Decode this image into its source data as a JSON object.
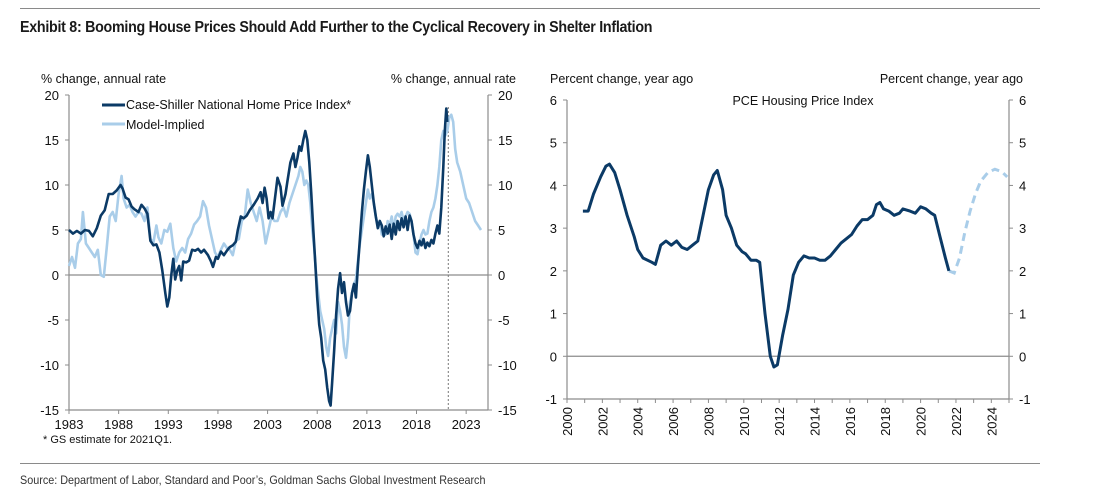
{
  "title": "Exhibit 8: Booming House Prices Should Add Further to the Cyclical Recovery in Shelter Inflation",
  "source": "Source: Department of Labor, Standard and Poor’s, Goldman Sachs Global Investment Research",
  "colors": {
    "dark_blue": "#0b3a66",
    "light_blue": "#a9cde9",
    "axis": "#8c8c8c"
  },
  "chart_data": [
    {
      "type": "line",
      "title": "",
      "ylabel_left": "% change, annual rate",
      "ylabel_right": "% change, annual rate",
      "xlabel": "",
      "footnote": "* GS estimate for 2021Q1.",
      "xlim": [
        1983,
        2025.2
      ],
      "ylim": [
        -15,
        20
      ],
      "x_ticks": [
        1983,
        1988,
        1993,
        1998,
        2003,
        2008,
        2013,
        2018,
        2023
      ],
      "y_ticks": [
        -15,
        -10,
        -5,
        0,
        5,
        10,
        15,
        20
      ],
      "vline_x": 2021.2,
      "legend_position": "top-left",
      "series": [
        {
          "name": "Case-Shiller National Home Price Index*",
          "style": "solid-dark",
          "points": [
            [
              1983.0,
              5.0
            ],
            [
              1983.3,
              4.6
            ],
            [
              1983.6,
              4.9
            ],
            [
              1984.0,
              4.6
            ],
            [
              1984.3,
              5.0
            ],
            [
              1984.6,
              4.8
            ],
            [
              1985.0,
              5.0
            ],
            [
              1985.5,
              4.3
            ],
            [
              1986.0,
              5.3
            ],
            [
              1986.5,
              6.7
            ],
            [
              1987.0,
              7.3
            ],
            [
              1987.3,
              9.0
            ],
            [
              1987.7,
              9.0
            ],
            [
              1988.0,
              9.3
            ],
            [
              1988.4,
              10.0
            ],
            [
              1988.7,
              9.8
            ],
            [
              1989.0,
              8.8
            ],
            [
              1989.3,
              8.0
            ],
            [
              1989.6,
              8.4
            ],
            [
              1990.0,
              7.4
            ],
            [
              1990.3,
              7.0
            ],
            [
              1990.6,
              6.8
            ],
            [
              1991.0,
              7.8
            ],
            [
              1991.3,
              7.4
            ],
            [
              1991.6,
              6.8
            ],
            [
              1992.0,
              4.0
            ],
            [
              1992.3,
              3.2
            ],
            [
              1992.6,
              3.5
            ],
            [
              1993.0,
              3.0
            ],
            [
              1993.3,
              1.4
            ],
            [
              1993.6,
              0.0
            ],
            [
              1994.0,
              -3.5
            ],
            [
              1994.3,
              -3.0
            ],
            [
              1994.6,
              -0.5
            ],
            [
              1995.0,
              1.8
            ],
            [
              1995.3,
              -0.5
            ],
            [
              1995.6,
              0.5
            ],
            [
              1996.0,
              1.0
            ],
            [
              1996.3,
              -0.5
            ],
            [
              1996.6,
              1.5
            ],
            [
              1997.0,
              1.2
            ],
            [
              1997.5,
              1.5
            ],
            [
              1998.0,
              2.8
            ],
            [
              1998.5,
              2.5
            ],
            [
              1999.0,
              2.9
            ],
            [
              1999.5,
              2.5
            ],
            [
              2000.0,
              2.0
            ],
            [
              2000.5,
              1.5
            ],
            [
              2001.0,
              0.9
            ],
            [
              2001.5,
              2.2
            ],
            [
              2002.0,
              1.8
            ],
            [
              2002.5,
              2.7
            ],
            [
              2003.0,
              2.2
            ],
            [
              2003.5,
              2.6
            ],
            [
              2004.0,
              3.0
            ],
            [
              2004.5,
              3.2
            ],
            [
              2005.0,
              3.5
            ],
            [
              2005.3,
              5.0
            ],
            [
              2005.6,
              6.5
            ],
            [
              2006.0,
              6.3
            ],
            [
              2006.5,
              6.8
            ],
            [
              2007.0,
              7.5
            ],
            [
              2007.5,
              8.3
            ],
            [
              2007.8,
              9.0
            ],
            [
              2008.1,
              8.0
            ],
            [
              2008.4,
              9.7
            ],
            [
              2008.7,
              8.5
            ],
            [
              2009.0,
              6.3
            ],
            [
              2009.3,
              7.0
            ],
            [
              2009.6,
              6.3
            ],
            [
              2010.0,
              9.0
            ],
            [
              2010.3,
              10.7
            ],
            [
              2010.6,
              9.8
            ],
            [
              2011.0,
              7.7
            ],
            [
              2011.3,
              9.0
            ],
            [
              2011.6,
              10.3
            ],
            [
              2012.0,
              12.5
            ],
            [
              2012.3,
              13.5
            ],
            [
              2012.6,
              12.0
            ],
            [
              2012.9,
              11.8
            ],
            [
              2013.2,
              13.0
            ],
            [
              2013.5,
              14.3
            ],
            [
              2013.8,
              13.5
            ],
            [
              2014.1,
              15.0
            ],
            [
              2014.4,
              16.0
            ],
            [
              2014.7,
              14.5
            ],
            [
              2015.0,
              13.5
            ],
            [
              2015.3,
              10.0
            ],
            [
              2015.6,
              5.0
            ],
            [
              2015.9,
              1.5
            ],
            [
              2016.2,
              -2.5
            ],
            [
              2016.4,
              -5.5
            ],
            [
              2016.6,
              -6.0
            ],
            [
              2016.9,
              -9.0
            ],
            [
              2017.1,
              -10.0
            ],
            [
              2017.3,
              -10.5
            ],
            [
              2017.5,
              -12.5
            ],
            [
              2017.7,
              -14.0
            ],
            [
              2017.9,
              -14.5
            ],
            [
              2018.1,
              -12.0
            ],
            [
              2018.3,
              -8.5
            ],
            [
              2018.5,
              -4.5
            ],
            [
              2018.7,
              -1.5
            ],
            [
              2018.9,
              0.0
            ]
          ]
        },
        {
          "name": "Model-Implied",
          "style": "solid-light",
          "points": []
        }
      ]
    },
    {
      "type": "line",
      "title": "PCE Housing Price Index",
      "ylabel_left": "Percent change, year ago",
      "ylabel_right": "Percent change, year ago",
      "xlabel": "",
      "xlim": [
        2000,
        2025
      ],
      "ylim": [
        -1,
        6
      ],
      "x_ticks": [
        2000,
        2002,
        2004,
        2006,
        2008,
        2010,
        2012,
        2014,
        2016,
        2018,
        2020,
        2022,
        2024
      ],
      "y_ticks": [
        -1,
        0,
        1,
        2,
        3,
        4,
        5,
        6
      ],
      "series": [
        {
          "name": "PCE Housing Price Index (actual)",
          "style": "solid-dark",
          "points": [
            [
              2000.9,
              3.4
            ],
            [
              2001.2,
              3.4
            ],
            [
              2001.5,
              3.8
            ],
            [
              2001.9,
              4.2
            ],
            [
              2002.2,
              4.45
            ],
            [
              2002.4,
              4.5
            ],
            [
              2002.7,
              4.3
            ],
            [
              2003.0,
              3.9
            ],
            [
              2003.4,
              3.3
            ],
            [
              2003.8,
              2.8
            ],
            [
              2004.0,
              2.5
            ],
            [
              2004.3,
              2.3
            ],
            [
              2004.8,
              2.2
            ],
            [
              2005.0,
              2.15
            ],
            [
              2005.3,
              2.6
            ],
            [
              2005.6,
              2.7
            ],
            [
              2005.9,
              2.6
            ],
            [
              2006.2,
              2.7
            ],
            [
              2006.5,
              2.55
            ],
            [
              2006.8,
              2.5
            ],
            [
              2007.1,
              2.6
            ],
            [
              2007.4,
              2.7
            ],
            [
              2007.7,
              3.3
            ],
            [
              2008.0,
              3.9
            ],
            [
              2008.3,
              4.25
            ],
            [
              2008.5,
              4.35
            ],
            [
              2008.8,
              3.9
            ],
            [
              2009.0,
              3.3
            ],
            [
              2009.3,
              3.0
            ],
            [
              2009.6,
              2.6
            ],
            [
              2009.9,
              2.45
            ],
            [
              2010.1,
              2.4
            ],
            [
              2010.4,
              2.25
            ],
            [
              2010.7,
              2.25
            ],
            [
              2010.9,
              2.2
            ],
            [
              2011.2,
              1.0
            ],
            [
              2011.5,
              0.0
            ],
            [
              2011.7,
              -0.25
            ],
            [
              2011.9,
              -0.2
            ],
            [
              2012.2,
              0.5
            ],
            [
              2012.5,
              1.1
            ],
            [
              2012.8,
              1.9
            ],
            [
              2013.1,
              2.2
            ],
            [
              2013.4,
              2.35
            ],
            [
              2013.7,
              2.3
            ],
            [
              2014.0,
              2.3
            ],
            [
              2014.3,
              2.25
            ],
            [
              2014.6,
              2.25
            ],
            [
              2014.9,
              2.35
            ],
            [
              2015.2,
              2.5
            ],
            [
              2015.5,
              2.65
            ],
            [
              2015.8,
              2.75
            ],
            [
              2016.1,
              2.85
            ],
            [
              2016.4,
              3.05
            ],
            [
              2016.7,
              3.2
            ],
            [
              2017.0,
              3.2
            ],
            [
              2017.3,
              3.3
            ],
            [
              2017.5,
              3.55
            ],
            [
              2017.7,
              3.6
            ],
            [
              2017.9,
              3.45
            ],
            [
              2018.2,
              3.4
            ],
            [
              2018.5,
              3.3
            ],
            [
              2018.8,
              3.35
            ],
            [
              2019.0,
              3.45
            ],
            [
              2019.4,
              3.4
            ],
            [
              2019.7,
              3.35
            ],
            [
              2020.0,
              3.5
            ],
            [
              2020.3,
              3.45
            ],
            [
              2020.6,
              3.35
            ],
            [
              2020.8,
              3.3
            ],
            [
              2021.1,
              2.8
            ],
            [
              2021.4,
              2.3
            ],
            [
              2021.6,
              2.0
            ]
          ]
        },
        {
          "name": "PCE Housing Price Index (forecast)",
          "style": "dashed-light",
          "points": [
            [
              2021.6,
              2.0
            ],
            [
              2021.9,
              1.95
            ],
            [
              2022.2,
              2.3
            ],
            [
              2022.5,
              2.9
            ],
            [
              2022.8,
              3.4
            ],
            [
              2023.1,
              3.8
            ],
            [
              2023.4,
              4.1
            ],
            [
              2023.8,
              4.3
            ],
            [
              2024.2,
              4.38
            ],
            [
              2024.6,
              4.32
            ],
            [
              2024.9,
              4.2
            ]
          ]
        }
      ]
    }
  ]
}
